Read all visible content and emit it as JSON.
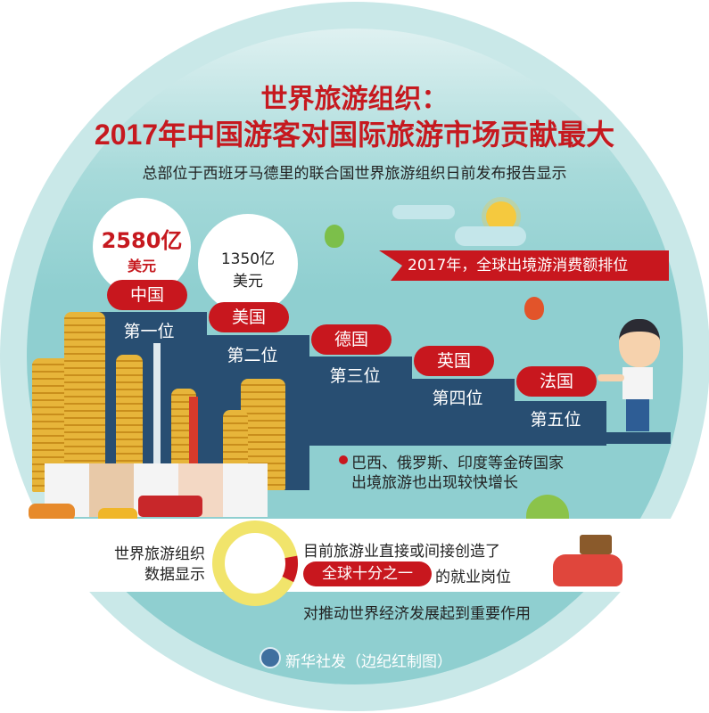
{
  "title_line1": "世界旅游组织：",
  "title_line2": "2017年中国游客对国际旅游市场贡献最大",
  "subtitle": "总部位于西班牙马德里的联合国世界旅游组织日前发布报告显示",
  "banner": "2017年，全球出境游消费额排位",
  "rankings": [
    {
      "country": "中国",
      "rank": "第一位",
      "amount": "2580亿",
      "unit": "美元"
    },
    {
      "country": "美国",
      "rank": "第二位",
      "amount": "1350亿",
      "unit": "美元"
    },
    {
      "country": "德国",
      "rank": "第三位"
    },
    {
      "country": "英国",
      "rank": "第四位"
    },
    {
      "country": "法国",
      "rank": "第五位"
    }
  ],
  "note_line1": "巴西、俄罗斯、印度等金砖国家",
  "note_line2": "出境旅游也出现较快增长",
  "wto_label_line1": "世界旅游组织",
  "wto_label_line2": "数据显示",
  "employment_share": 0.1,
  "employment_line1": "目前旅游业直接或间接创造了",
  "employment_highlight": "全球十分之一",
  "employment_line2": "的就业岗位",
  "employment_line3": "对推动世界经济发展起到重要作用",
  "credit": "新华社发（边纪红制图）",
  "colors": {
    "red": "#c8171e",
    "navy": "#284e72",
    "teal": "#8fcfd0",
    "gold": "#e7b53a",
    "ring": "#f1e46b"
  }
}
